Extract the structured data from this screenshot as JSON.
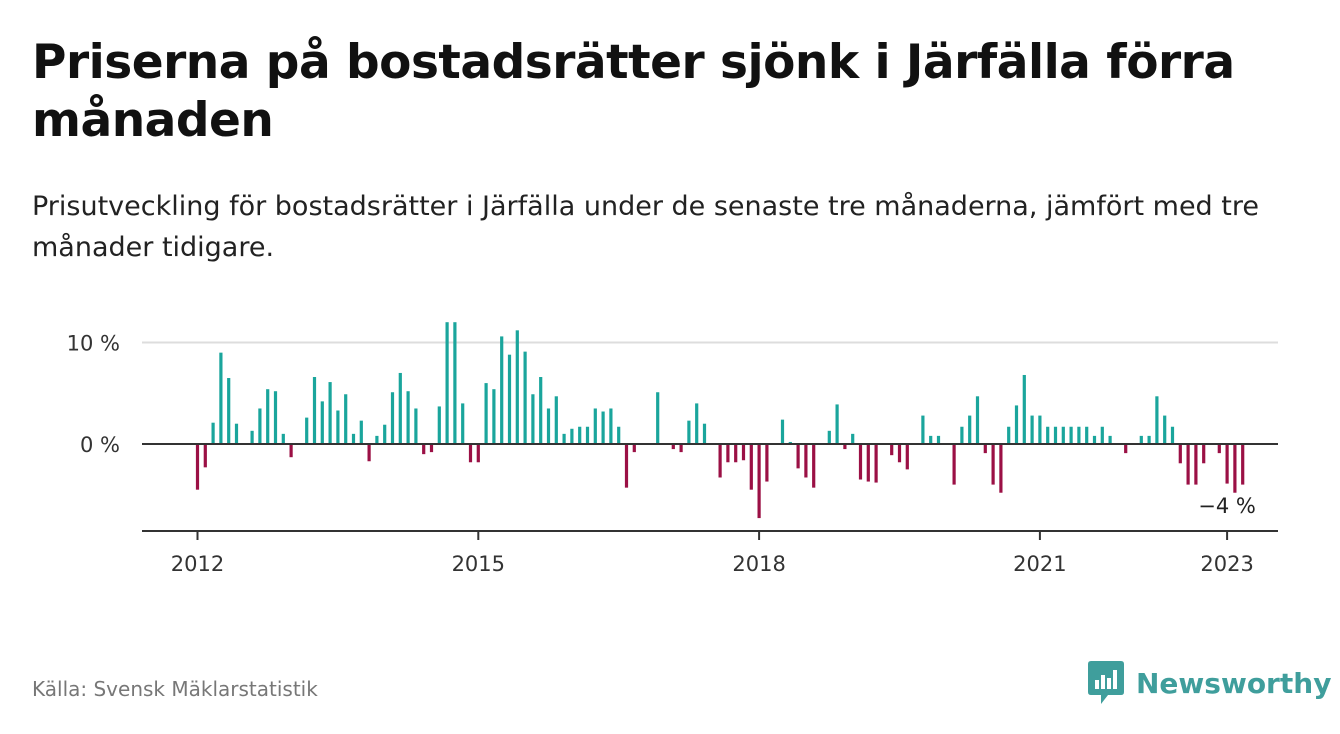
{
  "header": {
    "title": "Priserna på bostadsrätter sjönk i Järfälla förra månaden",
    "subtitle": "Prisutveckling för bostadsrätter i Järfälla under de senaste tre månaderna, jämfört med tre månader tidigare."
  },
  "footer": {
    "source": "Källa: Svensk Mäklarstatistik",
    "brand": "Newsworthy"
  },
  "colors": {
    "positive": "#1aa59c",
    "negative": "#9b1045",
    "axis": "#333333",
    "grid": "#dddddd",
    "brand": "#3f9e9c"
  },
  "icons": {
    "logo": "bar-chart-speech-bubble-icon"
  },
  "chart_data": {
    "type": "bar",
    "x_start": "2012-01",
    "frequency": "monthly",
    "x_ticks": [
      {
        "label": "2012",
        "month": "2012-01"
      },
      {
        "label": "2015",
        "month": "2015-01"
      },
      {
        "label": "2018",
        "month": "2018-01"
      },
      {
        "label": "2021",
        "month": "2021-01"
      },
      {
        "label": "2023",
        "month": "2023-01"
      }
    ],
    "y_ticks": [
      {
        "value": 0,
        "label": "0 %"
      },
      {
        "value": 10,
        "label": "10 %"
      }
    ],
    "ylim": [
      -8.5,
      12
    ],
    "grid": "horizontal",
    "annotation": {
      "text": "−4 %",
      "month": "2023-01"
    },
    "values": [
      -4.5,
      -2.3,
      2.1,
      9.0,
      6.5,
      2.0,
      0,
      1.3,
      3.5,
      5.4,
      5.2,
      1.0,
      -1.3,
      0,
      2.6,
      6.6,
      4.2,
      6.1,
      3.3,
      4.9,
      1.0,
      2.3,
      -1.7,
      0.8,
      1.9,
      5.1,
      7.0,
      5.2,
      3.5,
      -1.0,
      -0.8,
      3.7,
      12.0,
      12.0,
      4.0,
      -1.8,
      -1.8,
      6.0,
      5.4,
      10.6,
      8.8,
      11.2,
      9.1,
      4.9,
      6.6,
      3.5,
      4.7,
      1.0,
      1.5,
      1.7,
      1.7,
      3.5,
      3.2,
      3.5,
      1.7,
      -4.3,
      -0.8,
      0,
      0,
      5.1,
      0,
      -0.5,
      -0.8,
      2.3,
      4.0,
      2.0,
      0,
      -3.3,
      -1.8,
      -1.8,
      -1.6,
      -4.5,
      -7.3,
      -3.7,
      0,
      2.4,
      0.2,
      -2.4,
      -3.3,
      -4.3,
      0,
      1.3,
      3.9,
      -0.5,
      1.0,
      -3.5,
      -3.7,
      -3.8,
      0,
      -1.1,
      -1.8,
      -2.5,
      0,
      2.8,
      0.8,
      0.8,
      0,
      -4.0,
      1.7,
      2.8,
      4.7,
      -0.9,
      -4.0,
      -4.8,
      1.7,
      3.8,
      6.8,
      2.8,
      2.8,
      1.7,
      1.7,
      1.7,
      1.7,
      1.7,
      1.7,
      0.8,
      1.7,
      0.8,
      0,
      -0.9,
      0,
      0.8,
      0.8,
      4.7,
      2.8,
      1.7,
      -1.9,
      -4.0,
      -4.0,
      -1.9,
      0,
      -0.9,
      -3.9,
      -4.8,
      -4.0
    ]
  }
}
